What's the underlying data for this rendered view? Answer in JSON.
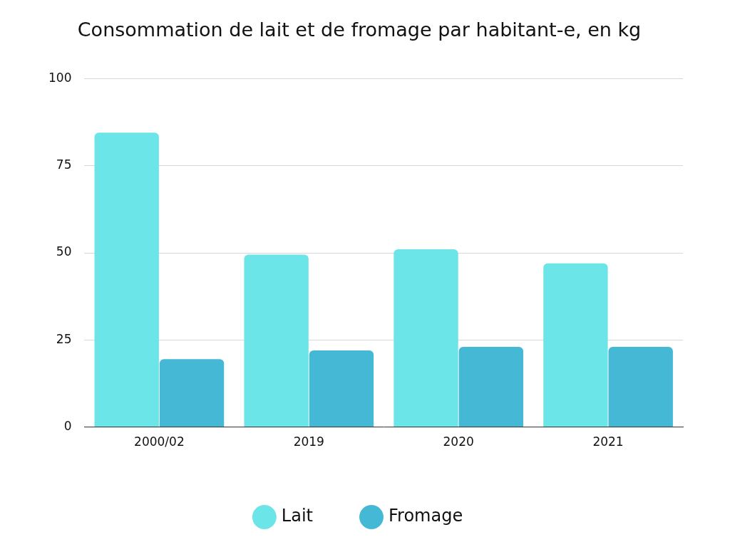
{
  "chart_data": {
    "type": "bar",
    "title": "Consommation de lait et de fromage par habitant-e, en kg",
    "categories": [
      "2000/02",
      "2019",
      "2020",
      "2021"
    ],
    "series": [
      {
        "name": "Lait",
        "color": "#6ce5e8",
        "values": [
          84.5,
          49.5,
          51,
          47
        ]
      },
      {
        "name": "Fromage",
        "color": "#45b8d6",
        "values": [
          19.5,
          22,
          23,
          23
        ]
      }
    ],
    "ylim": [
      0,
      100
    ],
    "yticks": [
      0,
      25,
      50,
      75,
      100
    ],
    "grid": true,
    "legend": "bottom"
  }
}
